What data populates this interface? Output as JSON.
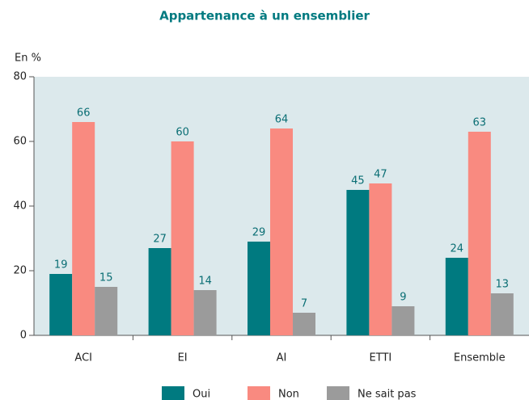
{
  "chart_data": {
    "type": "bar",
    "title": "Appartenance à un ensemblier",
    "y_label": "En %",
    "categories": [
      "ACI",
      "EI",
      "AI",
      "ETTI",
      "Ensemble"
    ],
    "series": [
      {
        "name": "Oui",
        "color": "#007a80",
        "values": [
          19,
          27,
          29,
          45,
          24
        ]
      },
      {
        "name": "Non",
        "color": "#f98a80",
        "values": [
          66,
          60,
          64,
          47,
          63
        ]
      },
      {
        "name": "Ne sait pas",
        "color": "#9b9b9b",
        "values": [
          15,
          14,
          7,
          9,
          13
        ]
      }
    ],
    "ylim": [
      0,
      80
    ],
    "yticks": [
      0,
      20,
      40,
      60,
      80
    ],
    "plot_background": "#dce9ec"
  }
}
